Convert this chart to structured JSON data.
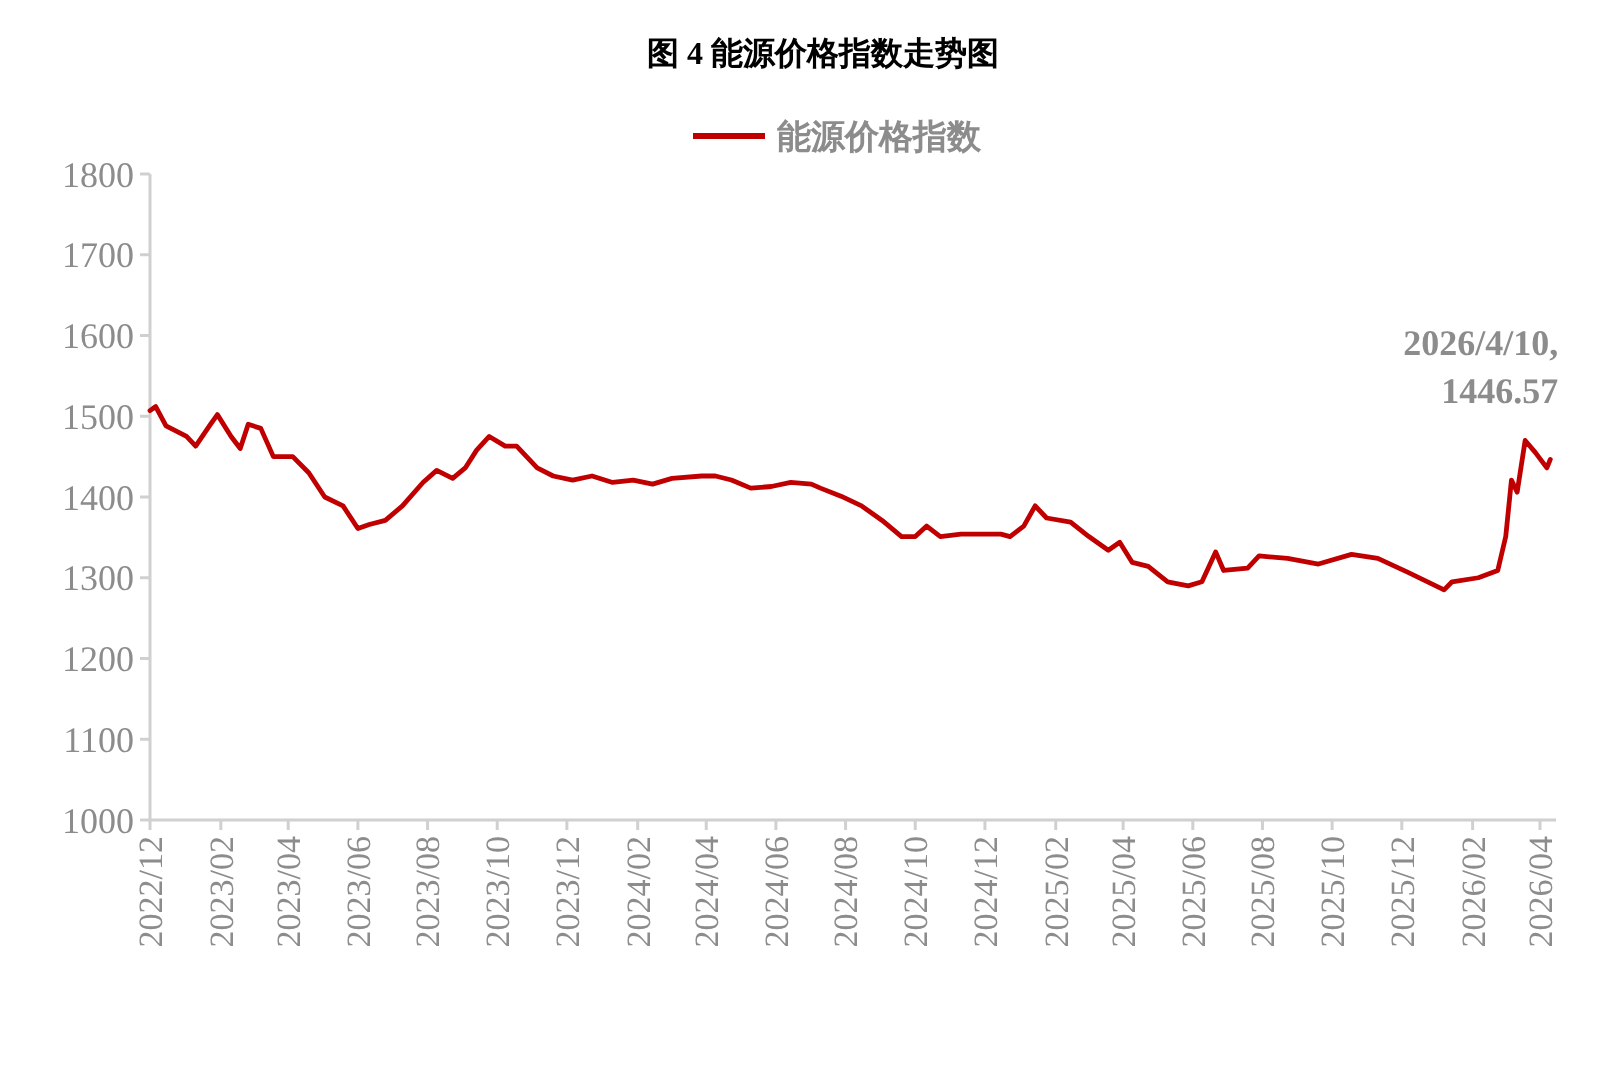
{
  "chart_data": {
    "type": "line",
    "title": "图 4  能源价格指数走势图",
    "legend": "top",
    "grid": false,
    "x": [
      "2022-12-01",
      "2022-12-06",
      "2022-12-15",
      "2023-01-02",
      "2023-01-10",
      "2023-01-22",
      "2023-01-29",
      "2023-02-10",
      "2023-02-18",
      "2023-02-25",
      "2023-03-08",
      "2023-03-19",
      "2023-04-05",
      "2023-04-19",
      "2023-05-03",
      "2023-05-19",
      "2023-06-01",
      "2023-06-11",
      "2023-06-25",
      "2023-07-10",
      "2023-07-28",
      "2023-08-09",
      "2023-08-23",
      "2023-09-03",
      "2023-09-13",
      "2023-09-24",
      "2023-10-08",
      "2023-10-18",
      "2023-11-05",
      "2023-11-19",
      "2023-12-06",
      "2023-12-23",
      "2024-01-10",
      "2024-01-28",
      "2024-02-14",
      "2024-03-02",
      "2024-03-28",
      "2024-04-09",
      "2024-04-23",
      "2024-05-10",
      "2024-05-28",
      "2024-06-14",
      "2024-07-02",
      "2024-07-10",
      "2024-07-28",
      "2024-08-15",
      "2024-09-02",
      "2024-09-19",
      "2024-10-01",
      "2024-10-11",
      "2024-10-23",
      "2024-11-10",
      "2024-11-28",
      "2024-12-15",
      "2024-12-23",
      "2025-01-04",
      "2025-01-14",
      "2025-01-24",
      "2025-02-14",
      "2025-03-02",
      "2025-03-19",
      "2025-03-29",
      "2025-04-09",
      "2025-04-23",
      "2025-05-10",
      "2025-05-28",
      "2025-06-09",
      "2025-06-21",
      "2025-06-28",
      "2025-07-19",
      "2025-07-29",
      "2025-08-23",
      "2025-09-19",
      "2025-10-18",
      "2025-11-10",
      "2025-12-06",
      "2026-01-07",
      "2026-01-14",
      "2026-02-06",
      "2026-02-23",
      "2026-03-02",
      "2026-03-07",
      "2026-03-12",
      "2026-03-19",
      "2026-03-28",
      "2026-04-07",
      "2026-04-10"
    ],
    "series": [
      {
        "name": "能源价格指数",
        "color": "#c00000",
        "values": [
          1507,
          1512,
          1488,
          1475,
          1463,
          1488,
          1502,
          1475,
          1460,
          1490,
          1485,
          1450,
          1450,
          1430,
          1400,
          1389,
          1361,
          1366,
          1371,
          1389,
          1418,
          1433,
          1423,
          1436,
          1458,
          1475,
          1463,
          1463,
          1436,
          1426,
          1421,
          1426,
          1418,
          1421,
          1416,
          1423,
          1426,
          1426,
          1421,
          1411,
          1413,
          1418,
          1416,
          1411,
          1401,
          1389,
          1371,
          1351,
          1351,
          1364,
          1351,
          1354,
          1354,
          1354,
          1351,
          1364,
          1389,
          1374,
          1369,
          1351,
          1334,
          1344,
          1319,
          1314,
          1295,
          1290,
          1295,
          1332,
          1309,
          1312,
          1327,
          1324,
          1317,
          1329,
          1324,
          1307,
          1285,
          1295,
          1300,
          1309,
          1351,
          1421,
          1406,
          1470,
          1455,
          1436,
          1446.57
        ]
      }
    ],
    "xlim": [
      "2022-12-01",
      "2026-04-15"
    ],
    "xticks": [
      {
        "value": "2022-12-01",
        "label": "2022/12"
      },
      {
        "value": "2023-02-01",
        "label": "2023/02"
      },
      {
        "value": "2023-04-01",
        "label": "2023/04"
      },
      {
        "value": "2023-06-01",
        "label": "2023/06"
      },
      {
        "value": "2023-08-01",
        "label": "2023/08"
      },
      {
        "value": "2023-10-01",
        "label": "2023/10"
      },
      {
        "value": "2023-12-01",
        "label": "2023/12"
      },
      {
        "value": "2024-02-01",
        "label": "2024/02"
      },
      {
        "value": "2024-04-01",
        "label": "2024/04"
      },
      {
        "value": "2024-06-01",
        "label": "2024/06"
      },
      {
        "value": "2024-08-01",
        "label": "2024/08"
      },
      {
        "value": "2024-10-01",
        "label": "2024/10"
      },
      {
        "value": "2024-12-01",
        "label": "2024/12"
      },
      {
        "value": "2025-02-01",
        "label": "2025/02"
      },
      {
        "value": "2025-04-01",
        "label": "2025/04"
      },
      {
        "value": "2025-06-01",
        "label": "2025/06"
      },
      {
        "value": "2025-08-01",
        "label": "2025/08"
      },
      {
        "value": "2025-10-01",
        "label": "2025/10"
      },
      {
        "value": "2025-12-01",
        "label": "2025/12"
      },
      {
        "value": "2026-02-01",
        "label": "2026/02"
      },
      {
        "value": "2026-04-01",
        "label": "2026/04"
      }
    ],
    "ylim": [
      1000,
      1800
    ],
    "yticks": [
      1000,
      1100,
      1200,
      1300,
      1400,
      1500,
      1600,
      1700,
      1800
    ],
    "annotations": [
      {
        "text": "2026/4/10, 1446.57",
        "x": "2026-04-10",
        "y": 1446.57
      }
    ]
  }
}
